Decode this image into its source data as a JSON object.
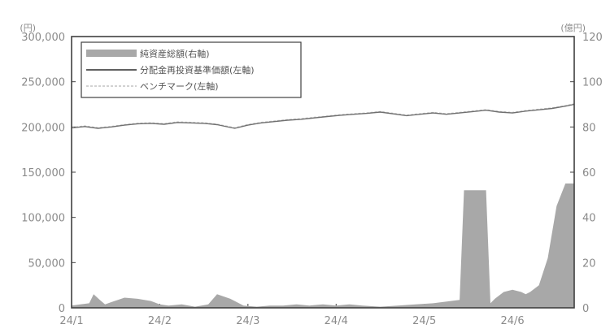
{
  "chart_data": {
    "type": "line",
    "title": "",
    "xlabel": "",
    "y_left_unit": "(円)",
    "y_right_unit": "(億円)",
    "ylim_left": [
      0,
      300000
    ],
    "ylim_right": [
      0,
      120
    ],
    "y_left_ticks": [
      "300,000",
      "250,000",
      "200,000",
      "150,000",
      "100,000",
      "50,000",
      "0"
    ],
    "y_right_ticks": [
      "120",
      "100",
      "80",
      "60",
      "40",
      "20",
      "0"
    ],
    "x_labels": [
      "24/1",
      "24/2",
      "24/3",
      "24/4",
      "24/5",
      "24/6"
    ],
    "legend_placement": "top-left",
    "grid": false,
    "legend": {
      "assets": "純資産総額(右軸)",
      "nav": "分配金再投資基準価額(左軸)",
      "benchmark": "ベンチマーク(左軸)"
    },
    "colors": {
      "assets": "#a8a8a8",
      "nav": "#707070",
      "benchmark": "#c4c4c4",
      "axis": "#404040",
      "text": "#8a8a8a"
    },
    "x_range": [
      0,
      5.7
    ],
    "nav_series": {
      "x": [
        0,
        0.15,
        0.3,
        0.45,
        0.6,
        0.75,
        0.9,
        1.05,
        1.2,
        1.35,
        1.5,
        1.65,
        1.85,
        2.0,
        2.15,
        2.3,
        2.45,
        2.6,
        2.75,
        2.9,
        3.05,
        3.2,
        3.35,
        3.5,
        3.65,
        3.8,
        3.95,
        4.1,
        4.25,
        4.4,
        4.55,
        4.7,
        4.85,
        5.0,
        5.15,
        5.3,
        5.45,
        5.6,
        5.7
      ],
      "y": [
        199000,
        200500,
        198500,
        200000,
        202000,
        203500,
        204000,
        203000,
        205000,
        204500,
        204000,
        202500,
        198500,
        202000,
        204500,
        206000,
        207500,
        208500,
        210000,
        211500,
        213000,
        214000,
        215000,
        216500,
        214500,
        212500,
        214000,
        215500,
        214000,
        215500,
        217000,
        218500,
        216500,
        215500,
        217500,
        219000,
        220500,
        223000,
        225000
      ]
    },
    "benchmark_series": {
      "x": [
        0,
        0.15,
        0.3,
        0.45,
        0.6,
        0.75,
        0.9,
        1.05,
        1.2,
        1.35,
        1.5,
        1.65,
        1.85,
        2.0,
        2.15,
        2.3,
        2.45,
        2.6,
        2.75,
        2.9,
        3.05,
        3.2,
        3.35,
        3.5,
        3.65,
        3.8,
        3.95,
        4.1,
        4.25,
        4.4,
        4.55,
        4.7,
        4.85,
        5.0,
        5.15,
        5.3,
        5.45,
        5.6,
        5.7
      ],
      "y": [
        199500,
        201000,
        199000,
        200500,
        202500,
        204000,
        204500,
        203500,
        205500,
        205000,
        204500,
        203000,
        199000,
        202500,
        205000,
        206500,
        208000,
        209000,
        210500,
        212000,
        213500,
        214500,
        215500,
        217000,
        215000,
        213000,
        214500,
        216000,
        214500,
        216000,
        217500,
        219000,
        217000,
        216000,
        218000,
        219500,
        221000,
        223500,
        225500
      ]
    },
    "assets_series": {
      "x": [
        0,
        0.1,
        0.2,
        0.25,
        0.32,
        0.38,
        0.45,
        0.6,
        0.75,
        0.9,
        1.0,
        1.1,
        1.25,
        1.4,
        1.55,
        1.65,
        1.8,
        1.95,
        2.1,
        2.25,
        2.4,
        2.55,
        2.7,
        2.85,
        3.0,
        3.15,
        3.3,
        3.5,
        3.7,
        3.9,
        4.1,
        4.3,
        4.4,
        4.45,
        4.55,
        4.7,
        4.75,
        4.8,
        4.9,
        5.0,
        5.05,
        5.1,
        5.15,
        5.2,
        5.3,
        5.4,
        5.5,
        5.6,
        5.7
      ],
      "y": [
        1,
        1.5,
        2,
        6,
        3.5,
        1.5,
        2.5,
        4.5,
        4,
        3,
        1.5,
        1,
        1.5,
        0.5,
        1.5,
        6,
        4,
        1,
        0.5,
        1,
        1,
        1.5,
        1,
        1.5,
        1,
        1.5,
        1,
        0.5,
        1,
        1.5,
        2,
        3,
        3.5,
        52,
        52,
        52,
        2,
        4,
        7,
        8,
        7.5,
        7,
        6,
        7,
        10,
        22,
        45,
        55,
        55
      ]
    }
  }
}
